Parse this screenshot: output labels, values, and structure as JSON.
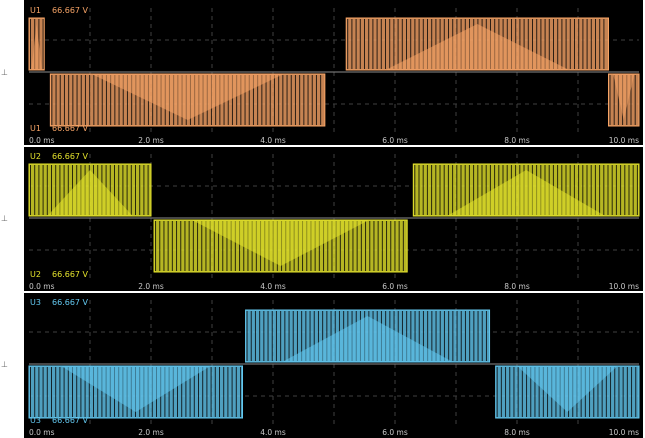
{
  "chart_data": [
    {
      "type": "line",
      "series_label": "U1",
      "scale_top": "66.667 V",
      "scale_bottom": "66.667 V",
      "color": "#f7a466",
      "x_unit": "ms",
      "x_ticks": [
        "0.0 ms",
        "2.0 ms",
        "4.0 ms",
        "6.0 ms",
        "8.0 ms",
        "10.0 ms"
      ],
      "xlim": [
        0,
        10
      ],
      "levels": [
        "+",
        "-"
      ],
      "segments": [
        {
          "start_ms": 0.0,
          "end_ms": 0.25,
          "level": "+"
        },
        {
          "start_ms": 0.25,
          "end_ms": 0.35,
          "level": "0"
        },
        {
          "start_ms": 0.35,
          "end_ms": 4.85,
          "level": "-"
        },
        {
          "start_ms": 4.85,
          "end_ms": 5.2,
          "level": "0"
        },
        {
          "start_ms": 5.2,
          "end_ms": 9.5,
          "level": "+"
        },
        {
          "start_ms": 9.5,
          "end_ms": 10.0,
          "level": "-"
        }
      ]
    },
    {
      "type": "line",
      "series_label": "U2",
      "scale_top": "66.667 V",
      "scale_bottom": "66.667 V",
      "color": "#e4e32c",
      "x_unit": "ms",
      "x_ticks": [
        "0.0 ms",
        "2.0 ms",
        "4.0 ms",
        "6.0 ms",
        "8.0 ms",
        "10.0 ms"
      ],
      "xlim": [
        0,
        10
      ],
      "levels": [
        "+",
        "-"
      ],
      "segments": [
        {
          "start_ms": 0.0,
          "end_ms": 2.0,
          "level": "+"
        },
        {
          "start_ms": 2.0,
          "end_ms": 2.05,
          "level": "0"
        },
        {
          "start_ms": 2.05,
          "end_ms": 6.2,
          "level": "-"
        },
        {
          "start_ms": 6.2,
          "end_ms": 6.3,
          "level": "0"
        },
        {
          "start_ms": 6.3,
          "end_ms": 10.0,
          "level": "+"
        }
      ]
    },
    {
      "type": "line",
      "series_label": "U3",
      "scale_top": "66.667 V",
      "scale_bottom": "66.667 V",
      "color": "#63c8f0",
      "x_unit": "ms",
      "x_ticks": [
        "0.0 ms",
        "2.0 ms",
        "4.0 ms",
        "6.0 ms",
        "8.0 ms",
        "10.0 ms"
      ],
      "xlim": [
        0,
        10
      ],
      "levels": [
        "+",
        "-"
      ],
      "segments": [
        {
          "start_ms": 0.0,
          "end_ms": 3.5,
          "level": "-"
        },
        {
          "start_ms": 3.5,
          "end_ms": 3.55,
          "level": "0"
        },
        {
          "start_ms": 3.55,
          "end_ms": 7.55,
          "level": "+"
        },
        {
          "start_ms": 7.55,
          "end_ms": 7.65,
          "level": "0"
        },
        {
          "start_ms": 7.65,
          "end_ms": 10.0,
          "level": "-"
        }
      ]
    }
  ]
}
